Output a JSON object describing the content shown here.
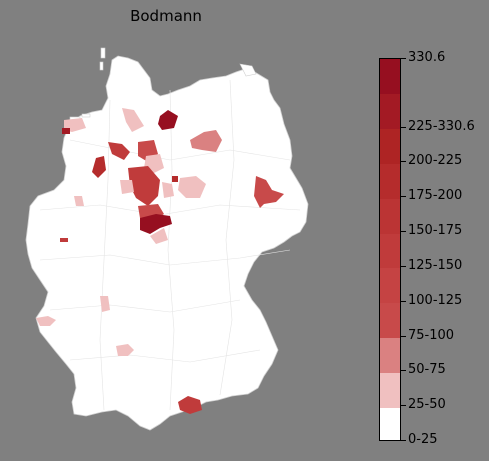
{
  "map": {
    "title": "Bodmann",
    "background_color": "#808080",
    "country_fill": "#ffffff",
    "border_color": "#cfcfcf"
  },
  "legend": {
    "type": "stepped-colorbar",
    "position": "right",
    "bins": [
      {
        "label": "0-25",
        "color": "#ffffff"
      },
      {
        "label": "25-50",
        "color": "#f0c0c0"
      },
      {
        "label": "50-75",
        "color": "#da8181"
      },
      {
        "label": "75-100",
        "color": "#c84a4a"
      },
      {
        "label": "100-125",
        "color": "#c54343"
      },
      {
        "label": "125-150",
        "color": "#c03b3b"
      },
      {
        "label": "150-175",
        "color": "#bb3434"
      },
      {
        "label": "175-200",
        "color": "#b52c2c"
      },
      {
        "label": "200-225",
        "color": "#ae2424"
      },
      {
        "label": "225-330.6",
        "color": "#a31a24"
      },
      {
        "label": "",
        "color": "#960f20"
      }
    ],
    "top_label": "330.6"
  }
}
